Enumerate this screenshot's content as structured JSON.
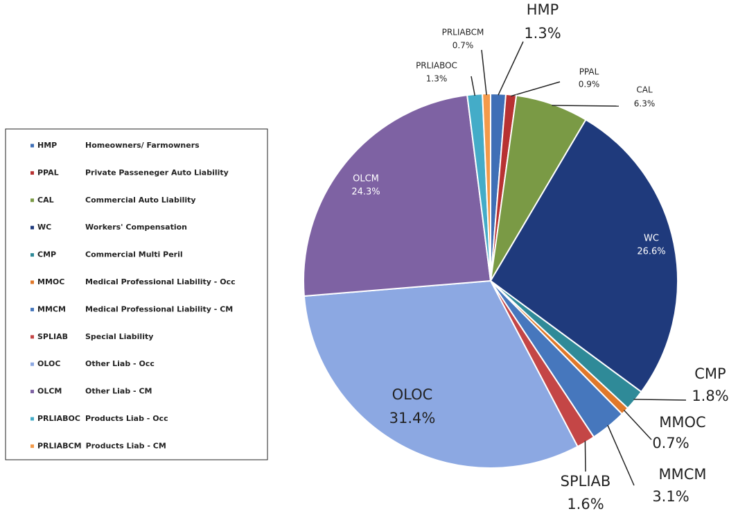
{
  "chart_data": {
    "type": "pie",
    "categories": [
      "HMP",
      "PPAL",
      "CAL",
      "WC",
      "CMP",
      "MMOC",
      "MMCM",
      "SPLIAB",
      "OLOC",
      "OLCM",
      "PRLIABOC",
      "PRLIABCM"
    ],
    "descriptions": [
      "Homeowners/ Farmowners",
      "Private Passeneger Auto Liability",
      "Commercial Auto Liability",
      "Workers' Compensation",
      "Commercial Multi Peril",
      "Medical Professional Liability - Occ",
      "Medical Professional Liability - CM",
      "Special Liability",
      "Other Liab - Occ",
      "Other Liab - CM",
      "Products Liab - Occ",
      "Products Liab - CM"
    ],
    "values": [
      1.3,
      0.9,
      6.3,
      26.6,
      1.8,
      0.7,
      3.1,
      1.6,
      31.4,
      24.3,
      1.3,
      0.7
    ],
    "value_labels": [
      "1.3%",
      "0.9%",
      "6.3%",
      "26.6%",
      "1.8%",
      "0.7%",
      "3.1%",
      "1.6%",
      "31.4%",
      "24.3%",
      "1.3%",
      "0.7%"
    ],
    "colors": [
      "#3f6fb6",
      "#b83232",
      "#7a9a45",
      "#1f3a7c",
      "#2f8a98",
      "#e0782a",
      "#4677bd",
      "#c44646",
      "#8ca8e2",
      "#7e62a3",
      "#44acc8",
      "#f39a4a"
    ],
    "legend": "left"
  }
}
